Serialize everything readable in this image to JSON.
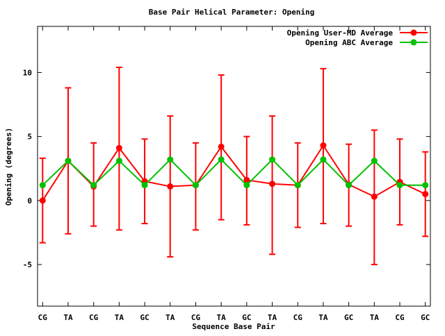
{
  "chart_data": {
    "type": "line",
    "title": "Base Pair Helical Parameter: Opening",
    "xlabel": "Sequence Base Pair",
    "ylabel": "Opening (degrees)",
    "categories": [
      "CG",
      "TA",
      "CG",
      "TA",
      "GC",
      "TA",
      "CG",
      "TA",
      "GC",
      "TA",
      "CG",
      "TA",
      "GC",
      "TA",
      "CG",
      "GC"
    ],
    "ylim": [
      -8.25,
      13.6
    ],
    "yticks": [
      -5,
      0,
      5,
      10
    ],
    "grid": false,
    "legend_position": "top-right-inside",
    "marker": "filled-circle",
    "background_color": "#ffffff",
    "border_color": "#000000",
    "series": [
      {
        "name": "Opening User-MD Average",
        "color": "#ff0000",
        "style": "line-with-points-and-errorbars",
        "values": [
          0.0,
          3.1,
          1.1,
          4.1,
          1.5,
          1.1,
          1.2,
          4.2,
          1.6,
          1.3,
          1.2,
          4.3,
          1.25,
          0.3,
          1.45,
          0.5
        ],
        "error_high": [
          3.3,
          8.8,
          4.5,
          10.4,
          4.8,
          6.6,
          4.5,
          9.8,
          5.0,
          6.6,
          4.5,
          10.3,
          4.4,
          5.5,
          4.8,
          3.8
        ],
        "error_low": [
          -3.3,
          -2.6,
          -2.0,
          -2.3,
          -1.8,
          -4.4,
          -2.3,
          -1.5,
          -1.9,
          -4.2,
          -2.1,
          -1.8,
          -2.0,
          -5.0,
          -1.9,
          -2.8
        ]
      },
      {
        "name": "Opening ABC Average",
        "color": "#00c000",
        "style": "line-with-points",
        "values": [
          1.2,
          3.1,
          1.2,
          3.1,
          1.2,
          3.2,
          1.2,
          3.2,
          1.2,
          3.2,
          1.2,
          3.2,
          1.2,
          3.1,
          1.2,
          1.2
        ],
        "error_high": null,
        "error_low": null
      }
    ]
  }
}
